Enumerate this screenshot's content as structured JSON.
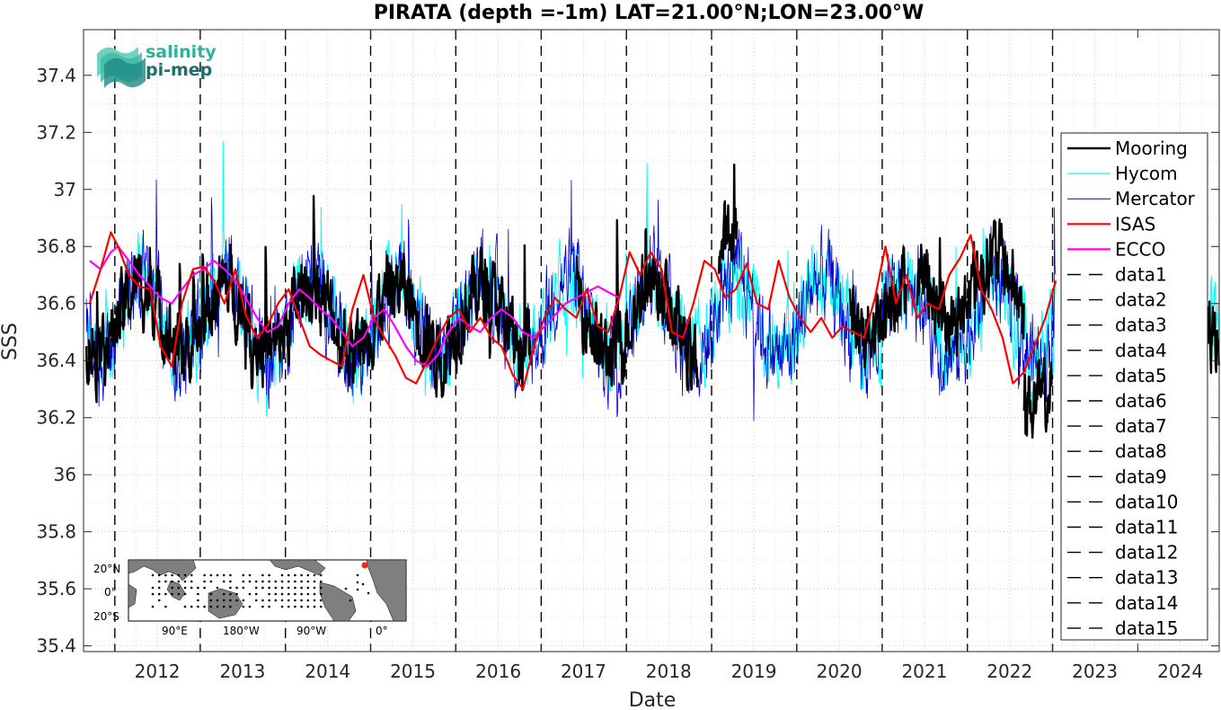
{
  "chart_data": {
    "type": "line",
    "title": "PIRATA (depth =-1m) LAT=21.00°N;LON=23.00°W",
    "xlabel": "Date",
    "ylabel": "SSS",
    "xlim": [
      "2011-08-20",
      "2024-12-15"
    ],
    "ylim": [
      35.38,
      37.56
    ],
    "grid": true,
    "legend_position": "right",
    "x_tick_labels": [
      "2012",
      "2013",
      "2014",
      "2015",
      "2016",
      "2017",
      "2018",
      "2019",
      "2020",
      "2021",
      "2022",
      "2023",
      "2024"
    ],
    "y_tick_labels": [
      "35.4",
      "35.6",
      "35.8",
      "36",
      "36.2",
      "36.4",
      "36.6",
      "36.8",
      "37",
      "37.2",
      "37.4"
    ],
    "y_ticks": [
      35.4,
      35.6,
      35.8,
      36.0,
      36.2,
      36.4,
      36.6,
      36.8,
      37.0,
      37.2,
      37.4
    ],
    "vlines": [
      "2012-01-01",
      "2013-01-01",
      "2014-01-01",
      "2015-01-01",
      "2016-01-01",
      "2017-01-01",
      "2018-01-01",
      "2019-01-01",
      "2020-01-01",
      "2021-01-01",
      "2022-01-01",
      "2023-01-01"
    ],
    "series": [
      {
        "name": "Mooring",
        "color": "#000000",
        "segments": [
          {
            "start": "2011-09-01",
            "end": "2016-11-15",
            "mean": 36.55,
            "amp": 0.32
          },
          {
            "start": "2017-06-01",
            "end": "2018-11-01",
            "mean": 36.55,
            "amp": 0.38
          },
          {
            "start": "2019-02-01",
            "end": "2019-04-20",
            "mean": 36.75,
            "amp": 0.25
          },
          {
            "start": "2020-08-15",
            "end": "2021-04-15",
            "mean": 36.6,
            "amp": 0.25
          },
          {
            "start": "2021-06-01",
            "end": "2022-09-01",
            "mean": 36.65,
            "amp": 0.35
          },
          {
            "start": "2022-09-01",
            "end": "2023-01-01",
            "mean": 36.35,
            "amp": 0.3
          },
          {
            "start": "2024-10-25",
            "end": "2024-12-15",
            "mean": 36.52,
            "amp": 0.1
          }
        ]
      },
      {
        "name": "Hycom",
        "color": "#00ffff",
        "segments": [
          {
            "start": "2011-09-01",
            "end": "2023-01-15",
            "mean": 36.55,
            "amp": 0.35
          },
          {
            "start": "2024-11-01",
            "end": "2024-12-15",
            "mean": 36.6,
            "amp": 0.2
          }
        ]
      },
      {
        "name": "Mercator",
        "color": "#0000cd",
        "segments": [
          {
            "start": "2011-09-01",
            "end": "2023-01-15",
            "mean": 36.55,
            "amp": 0.4
          }
        ]
      },
      {
        "name": "ISAS",
        "color": "#ff0000",
        "dates": [
          "2011-09-15",
          "2011-11-01",
          "2011-12-15",
          "2012-01-15",
          "2012-03-01",
          "2012-04-15",
          "2012-06-01",
          "2012-07-15",
          "2012-09-01",
          "2012-10-15",
          "2012-12-01",
          "2013-01-15",
          "2013-03-01",
          "2013-04-15",
          "2013-06-01",
          "2013-07-15",
          "2013-09-01",
          "2013-10-15",
          "2013-12-01",
          "2014-01-15",
          "2014-03-01",
          "2014-04-15",
          "2014-06-01",
          "2014-07-15",
          "2014-09-01",
          "2014-10-15",
          "2014-12-01",
          "2015-01-15",
          "2015-03-01",
          "2015-04-15",
          "2015-06-01",
          "2015-07-15",
          "2015-09-01",
          "2015-10-15",
          "2015-12-01",
          "2016-01-15",
          "2016-03-01",
          "2016-04-15",
          "2016-06-01",
          "2016-07-15",
          "2016-09-01",
          "2016-10-15",
          "2016-12-01",
          "2017-01-15",
          "2017-03-01",
          "2017-04-15",
          "2017-06-01",
          "2017-07-15",
          "2017-09-01",
          "2017-10-15",
          "2017-12-01",
          "2018-01-15",
          "2018-03-01",
          "2018-04-15",
          "2018-06-01",
          "2018-07-15",
          "2018-09-01",
          "2018-10-15",
          "2018-12-01",
          "2019-01-15",
          "2019-03-01",
          "2019-04-15",
          "2019-06-01",
          "2019-07-15",
          "2019-09-01",
          "2019-10-15",
          "2019-12-01",
          "2020-01-15",
          "2020-03-01",
          "2020-04-15",
          "2020-06-01",
          "2020-07-15",
          "2020-09-01",
          "2020-10-15",
          "2020-12-01",
          "2021-01-15",
          "2021-03-01",
          "2021-04-15",
          "2021-06-01",
          "2021-07-15",
          "2021-09-01",
          "2021-10-15",
          "2021-12-01",
          "2022-01-15",
          "2022-03-01",
          "2022-04-15",
          "2022-06-01",
          "2022-07-15",
          "2022-09-01",
          "2022-10-15",
          "2022-12-01",
          "2023-01-15"
        ],
        "values": [
          36.6,
          36.72,
          36.85,
          36.8,
          36.7,
          36.66,
          36.65,
          36.45,
          36.38,
          36.6,
          36.72,
          36.73,
          36.68,
          36.6,
          36.72,
          36.56,
          36.48,
          36.52,
          36.6,
          36.65,
          36.55,
          36.45,
          36.42,
          36.4,
          36.38,
          36.58,
          36.7,
          36.55,
          36.48,
          36.42,
          36.34,
          36.32,
          36.4,
          36.48,
          36.55,
          36.58,
          36.5,
          36.55,
          36.48,
          36.45,
          36.35,
          36.3,
          36.45,
          36.55,
          36.62,
          36.58,
          36.55,
          36.65,
          36.52,
          36.5,
          36.62,
          36.78,
          36.7,
          36.78,
          36.72,
          36.5,
          36.48,
          36.6,
          36.75,
          36.72,
          36.62,
          36.65,
          36.74,
          36.6,
          36.58,
          36.75,
          36.62,
          36.55,
          36.5,
          36.55,
          36.48,
          36.52,
          36.5,
          36.48,
          36.62,
          36.8,
          36.6,
          36.7,
          36.55,
          36.6,
          36.58,
          36.7,
          36.76,
          36.84,
          36.65,
          36.58,
          36.48,
          36.32,
          36.36,
          36.45,
          36.55,
          36.68
        ]
      },
      {
        "name": "ECCO",
        "color": "#ff00ff",
        "dates": [
          "2011-09-15",
          "2011-11-01",
          "2011-12-15",
          "2012-01-15",
          "2012-03-01",
          "2012-04-15",
          "2012-06-01",
          "2012-07-15",
          "2012-09-01",
          "2012-10-15",
          "2012-12-01",
          "2013-01-15",
          "2013-03-01",
          "2013-04-15",
          "2013-06-01",
          "2013-07-15",
          "2013-09-01",
          "2013-10-15",
          "2013-12-01",
          "2014-01-15",
          "2014-03-01",
          "2014-04-15",
          "2014-06-01",
          "2014-07-15",
          "2014-09-01",
          "2014-10-15",
          "2014-12-01",
          "2015-01-15",
          "2015-03-01",
          "2015-04-15",
          "2015-06-01",
          "2015-07-15",
          "2015-09-01",
          "2015-10-15",
          "2015-12-01",
          "2016-01-15",
          "2016-03-01",
          "2016-04-15",
          "2016-06-01",
          "2016-07-15",
          "2016-09-01",
          "2016-10-15",
          "2016-12-01",
          "2017-01-15",
          "2017-03-01",
          "2017-04-15",
          "2017-06-01",
          "2017-07-15",
          "2017-09-01",
          "2017-10-15",
          "2017-12-01"
        ],
        "values": [
          36.75,
          36.72,
          36.78,
          36.8,
          36.75,
          36.7,
          36.66,
          36.62,
          36.6,
          36.65,
          36.7,
          36.72,
          36.75,
          36.72,
          36.68,
          36.62,
          36.55,
          36.5,
          36.52,
          36.6,
          36.65,
          36.62,
          36.58,
          36.55,
          36.5,
          36.45,
          36.48,
          36.55,
          36.58,
          36.52,
          36.45,
          36.4,
          36.38,
          36.42,
          36.5,
          36.55,
          36.52,
          36.5,
          36.55,
          36.58,
          36.55,
          36.5,
          36.48,
          36.52,
          36.56,
          36.6,
          36.62,
          36.64,
          36.66,
          36.64,
          36.62
        ]
      },
      {
        "name": "data1",
        "color": "#000000"
      },
      {
        "name": "data2",
        "color": "#000000"
      },
      {
        "name": "data3",
        "color": "#000000"
      },
      {
        "name": "data4",
        "color": "#000000"
      },
      {
        "name": "data5",
        "color": "#000000"
      },
      {
        "name": "data6",
        "color": "#000000"
      },
      {
        "name": "data7",
        "color": "#000000"
      },
      {
        "name": "data8",
        "color": "#000000"
      },
      {
        "name": "data9",
        "color": "#000000"
      },
      {
        "name": "data10",
        "color": "#000000"
      },
      {
        "name": "data11",
        "color": "#000000"
      },
      {
        "name": "data12",
        "color": "#000000"
      },
      {
        "name": "data13",
        "color": "#000000"
      },
      {
        "name": "data14",
        "color": "#000000"
      },
      {
        "name": "data15",
        "color": "#000000"
      }
    ]
  },
  "logo": {
    "line1": "salinity",
    "line2": "pi-mep",
    "color1": "#2bb39b",
    "color2": "#1d6e6a"
  },
  "inset_map": {
    "y_labels": [
      "20°N",
      "0°",
      "20°S"
    ],
    "x_labels": [
      "90°E",
      "180°W",
      "90°W",
      "0°"
    ],
    "marker_color": "#ff2020"
  }
}
